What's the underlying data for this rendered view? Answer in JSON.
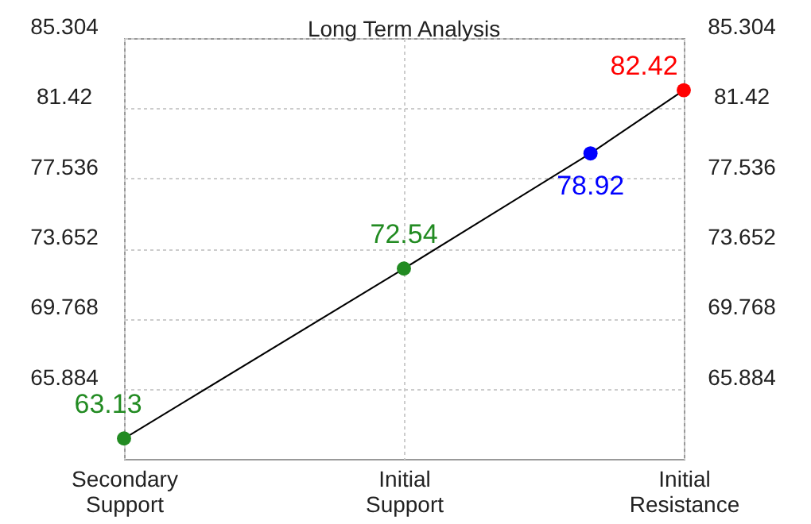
{
  "chart_data": {
    "type": "line",
    "title": "Long Term Analysis",
    "categories": [
      "Secondary Support",
      null,
      null,
      "Initial Support",
      null,
      null,
      "Initial Resistance"
    ],
    "series": [
      {
        "color": "#000000",
        "values": [
          63.13,
          null,
          null,
          72.54,
          null,
          78.92,
          82.42
        ],
        "colors": [
          "#228b22",
          null,
          null,
          "#228b22",
          null,
          "#0000ff",
          "#ff0000"
        ]
      }
    ],
    "data_labels": true,
    "marker": "circle",
    "ylim": [
      62,
      85.304
    ],
    "yticks": [
      65.884,
      69.768,
      73.652,
      77.536,
      81.42,
      85.304
    ],
    "y2lim": [
      62,
      85.304
    ],
    "y2ticks": [
      65.884,
      69.768,
      73.652,
      77.536,
      81.42,
      85.304
    ],
    "grid": true
  }
}
